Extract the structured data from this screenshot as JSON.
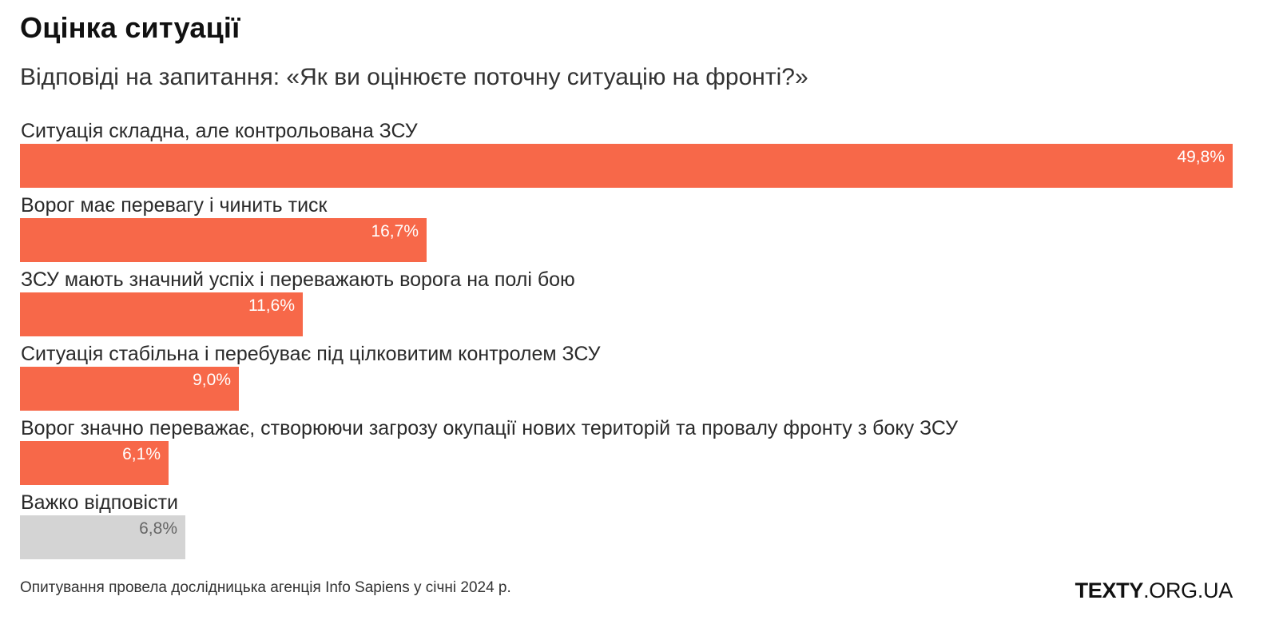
{
  "title": "Оцінка ситуації",
  "subtitle": "Відповіді на запитання: «Як ви оцінюєте поточну ситуацію на фронті?»",
  "source": "Опитування провела дослідницька агенція Info Sapiens у січні 2024 р.",
  "brand": {
    "bold": "TEXTY",
    "light": ".ORG.UA"
  },
  "colors": {
    "bar": "#f76849",
    "bar_other": "#d4d4d4"
  },
  "chart_data": {
    "type": "bar",
    "orientation": "horizontal",
    "title": "Оцінка ситуації",
    "subtitle": "Відповіді на запитання: «Як ви оцінюєте поточну ситуацію на фронті?»",
    "unit": "%",
    "xlim": [
      0,
      49.8
    ],
    "categories": [
      "Ситуація складна, але контрольована ЗСУ",
      "Ворог має перевагу і чинить тиск",
      "ЗСУ мають значний успіх і переважають ворога на полі бою",
      "Ситуація стабільна і перебуває під цілковитим контролем ЗСУ",
      "Ворог значно переважає, створюючи загрозу окупації нових територій та провалу фронту з боку ЗСУ",
      "Важко відповісти"
    ],
    "values": [
      49.8,
      16.7,
      11.6,
      9.0,
      6.1,
      6.8
    ],
    "value_labels": [
      "49,8%",
      "16,7%",
      "11,6%",
      "9,0%",
      "6,1%",
      "6,8%"
    ],
    "highlight": [
      "accent",
      "accent",
      "accent",
      "accent",
      "accent",
      "neutral"
    ],
    "grid": false,
    "legend": "none"
  }
}
